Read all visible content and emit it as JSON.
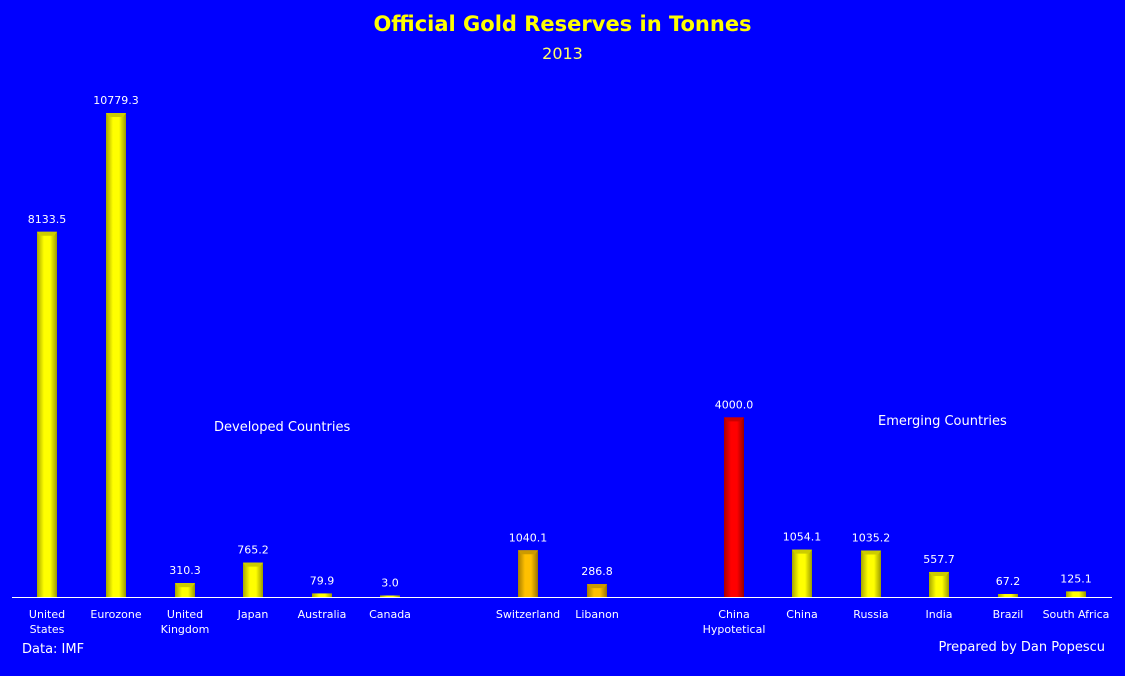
{
  "chart_data": {
    "type": "bar",
    "title": "Official Gold Reserves in Tonnes",
    "subtitle": "2013",
    "categories": [
      "United States",
      "Eurozone",
      "United Kingdom",
      "Japan",
      "Australia",
      "Canada",
      "Switzerland",
      "Libanon",
      "China Hypotetical",
      "China",
      "Russia",
      "India",
      "Brazil",
      "South Africa"
    ],
    "category_labels": [
      [
        "United",
        "States"
      ],
      [
        "Eurozone"
      ],
      [
        "United",
        "Kingdom"
      ],
      [
        "Japan"
      ],
      [
        "Australia"
      ],
      [
        "Canada"
      ],
      [
        "Switzerland"
      ],
      [
        "Libanon"
      ],
      [
        "China",
        "Hypotetical"
      ],
      [
        "China"
      ],
      [
        "Russia"
      ],
      [
        "India"
      ],
      [
        "Brazil"
      ],
      [
        "South Africa"
      ]
    ],
    "values": [
      8133.5,
      10779.3,
      310.3,
      765.2,
      79.9,
      3.0,
      1040.1,
      286.8,
      4000.0,
      1054.1,
      1035.2,
      557.7,
      67.2,
      125.1
    ],
    "value_labels": [
      "8133.5",
      "10779.3",
      "310.3",
      "765.2",
      "79.9",
      "3.0",
      "1040.1",
      "286.8",
      "4000.0",
      "1054.1",
      "1035.2",
      "557.7",
      "67.2",
      "125.1"
    ],
    "bar_colors": [
      "#FFFF00",
      "#FFFF00",
      "#FFFF00",
      "#FFFF00",
      "#FFFF00",
      "#FFFF00",
      "#FFC000",
      "#FFC000",
      "#FF0000",
      "#FFFF00",
      "#FFFF00",
      "#FFFF00",
      "#FFFF00",
      "#FFFF00"
    ],
    "ylim": [
      0,
      10779.3
    ],
    "grid": false,
    "annotations": {
      "developed": "Developed Countries",
      "emerging": "Emerging Countries"
    }
  },
  "footer": {
    "source": "Data: IMF",
    "credit": "Prepared by Dan Popescu"
  },
  "colors": {
    "background": "#0000FF",
    "title": "#FFFF00"
  }
}
